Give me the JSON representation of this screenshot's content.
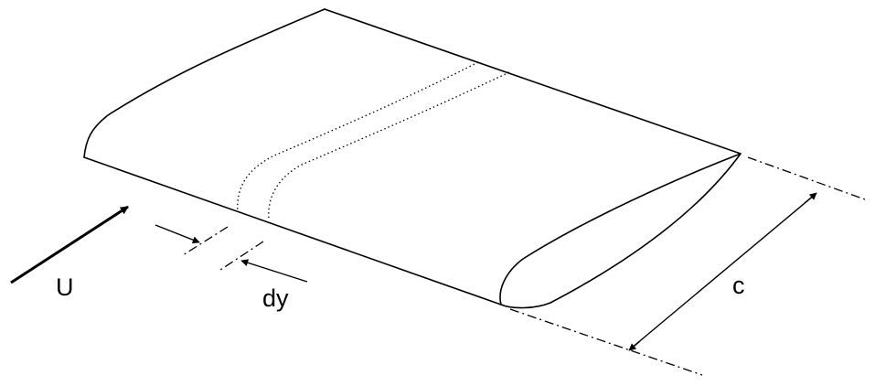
{
  "labels": {
    "freestream_velocity": "U",
    "strip_width": "dy",
    "chord": "c"
  },
  "colors": {
    "ink": "#000000",
    "background": "#ffffff"
  }
}
